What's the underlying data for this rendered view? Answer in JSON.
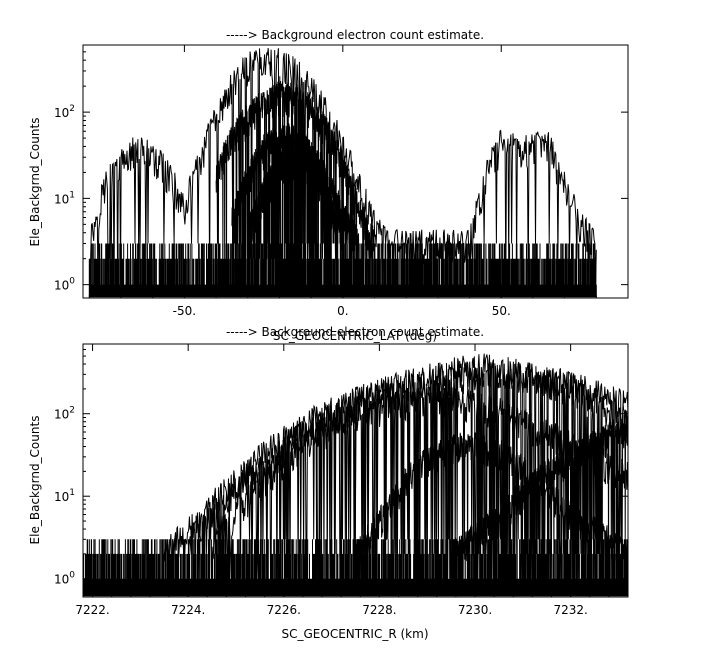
{
  "chart_data": [
    {
      "type": "line",
      "title": "-----> Background electron count estimate.",
      "xlabel": "SC_GEOCENTRIC_LAT (deg)",
      "ylabel": "Ele_Backgrnd_Counts",
      "y_scale": "log",
      "xlim": [
        -82,
        90
      ],
      "ylim": [
        0.7,
        600
      ],
      "x_ticks": [
        {
          "value": -50,
          "label": "-50."
        },
        {
          "value": 0,
          "label": "0."
        },
        {
          "value": 50,
          "label": "50."
        }
      ],
      "y_ticks": [
        {
          "value": 1,
          "base": "10",
          "exp": "0"
        },
        {
          "value": 10,
          "base": "10",
          "exp": "1"
        },
        {
          "value": 100,
          "base": "10",
          "exp": "2"
        }
      ],
      "series": [
        {
          "x": [
            -80,
            -75,
            -70,
            -65,
            -60,
            -55,
            -50,
            -45,
            -40,
            -35,
            -30,
            -25,
            -20,
            -15,
            -10,
            -5,
            0,
            5,
            10,
            15,
            20,
            30,
            40,
            45,
            50,
            55,
            60,
            65,
            70,
            75,
            80
          ],
          "y": [
            3,
            15,
            25,
            40,
            30,
            20,
            8,
            30,
            90,
            200,
            350,
            400,
            380,
            300,
            200,
            100,
            40,
            15,
            5,
            3,
            3,
            3,
            3,
            20,
            45,
            40,
            40,
            45,
            15,
            5,
            3
          ]
        },
        {
          "x": [
            -40,
            -35,
            -30,
            -25,
            -20,
            -15,
            -10,
            -5,
            0,
            5,
            10
          ],
          "y": [
            20,
            50,
            90,
            130,
            160,
            150,
            110,
            60,
            25,
            8,
            3
          ]
        },
        {
          "x": [
            -35,
            -30,
            -25,
            -20,
            -15,
            -10,
            -5,
            0,
            5
          ],
          "y": [
            6,
            18,
            38,
            55,
            50,
            35,
            18,
            7,
            3
          ]
        },
        {
          "x": [
            -30,
            -25,
            -20,
            -15,
            -10,
            -5,
            0
          ],
          "y": [
            4,
            12,
            25,
            30,
            22,
            10,
            4
          ]
        }
      ]
    },
    {
      "type": "line",
      "title": "-----> Background electron count estimate.",
      "xlabel": "SC_GEOCENTRIC_R (km)",
      "ylabel": "Ele_Backgrnd_Counts",
      "y_scale": "log",
      "xlim": [
        7221.8,
        7233.2
      ],
      "ylim": [
        0.6,
        700
      ],
      "x_ticks": [
        {
          "value": 7222,
          "label": "7222."
        },
        {
          "value": 7224,
          "label": "7224."
        },
        {
          "value": 7226,
          "label": "7226."
        },
        {
          "value": 7228,
          "label": "7228."
        },
        {
          "value": 7230,
          "label": "7230."
        },
        {
          "value": 7232,
          "label": "7232."
        }
      ],
      "y_ticks": [
        {
          "value": 1,
          "base": "10",
          "exp": "0"
        },
        {
          "value": 10,
          "base": "10",
          "exp": "1"
        },
        {
          "value": 100,
          "base": "10",
          "exp": "2"
        }
      ],
      "series": [
        {
          "x": [
            7223.5,
            7224.5,
            7225.5,
            7226.5,
            7227.5,
            7228.5,
            7229.5,
            7230.0,
            7230.5,
            7231.0,
            7231.5,
            7232.0,
            7232.5,
            7233.2
          ],
          "y": [
            2,
            8,
            30,
            80,
            150,
            230,
            330,
            380,
            350,
            320,
            280,
            230,
            180,
            130
          ]
        },
        {
          "x": [
            7224.0,
            7225.0,
            7226.0,
            7227.0,
            7228.0,
            7229.0,
            7230.0,
            7231.0,
            7231.5,
            7232.0,
            7232.5,
            7233.2
          ],
          "y": [
            3,
            12,
            40,
            100,
            170,
            230,
            280,
            300,
            260,
            200,
            140,
            90
          ]
        },
        {
          "x": [
            7224.5,
            7225.5,
            7226.5,
            7227.5,
            7228.5,
            7229.5,
            7230.5,
            7231.5,
            7232.5,
            7233.2
          ],
          "y": [
            3,
            15,
            50,
            100,
            140,
            150,
            110,
            60,
            30,
            18
          ]
        },
        {
          "x": [
            7227.5,
            7228.0,
            7228.5,
            7229.0,
            7229.5,
            7230.0,
            7230.5,
            7231.0,
            7231.5,
            7232.0,
            7232.5,
            7233.2
          ],
          "y": [
            2,
            5,
            15,
            28,
            40,
            42,
            35,
            22,
            12,
            6,
            4,
            2
          ]
        },
        {
          "x": [
            7229.5,
            7230.5,
            7231.5,
            7232.5,
            7233.2
          ],
          "y": [
            2,
            6,
            20,
            45,
            70
          ]
        }
      ]
    }
  ]
}
